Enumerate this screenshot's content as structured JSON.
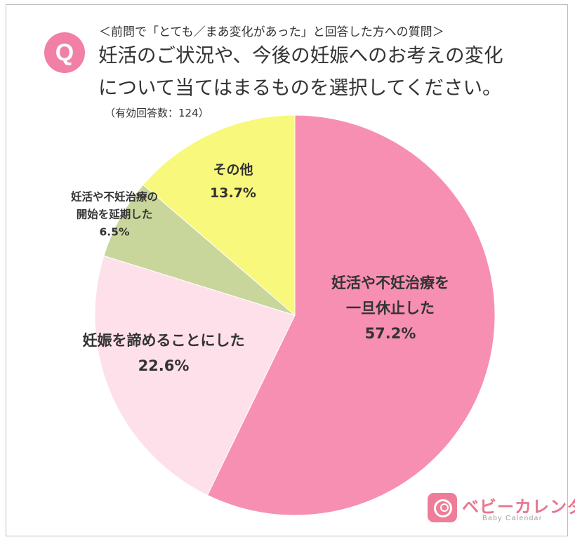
{
  "header": {
    "badge": "Q",
    "sub_question": "＜前問で「とても／まあ変化があった」と回答した方への質問＞",
    "title_line1": "妊活のご状況や、今後の妊娠へのお考えの変化",
    "title_line2": "について当てはまるものを選択してください。",
    "respondents": "（有効回答数：124）"
  },
  "chart_data": {
    "type": "pie",
    "start": "12 o'clock, clockwise",
    "slices": [
      {
        "label_lines": [
          "妊活や不妊治療を",
          "一旦休止した"
        ],
        "pct_text": "57.2%",
        "value": 57.2,
        "color": "#f78fb3"
      },
      {
        "label_lines": [
          "妊娠を諦めることにした"
        ],
        "pct_text": "22.6%",
        "value": 22.6,
        "color": "#fde0ea"
      },
      {
        "label_lines": [
          "妊活や不妊治療の",
          "開始を延期した"
        ],
        "pct_text": "6.5%",
        "value": 6.5,
        "color": "#c8d69b"
      },
      {
        "label_lines": [
          "その他"
        ],
        "pct_text": "13.7%",
        "value": 13.7,
        "color": "#f8f87d"
      }
    ]
  },
  "logo": {
    "name": "ベビーカレンダー",
    "sub": "Baby Calendar",
    "brand_color": "#ee7d99"
  }
}
